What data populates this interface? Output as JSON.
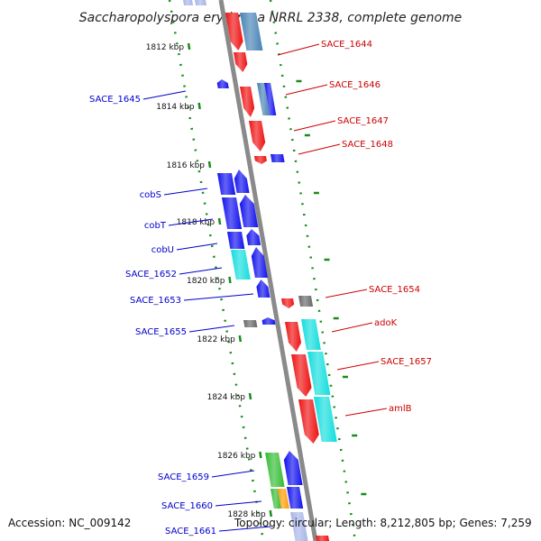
{
  "header": {
    "title": "Saccharopolyspora erythraea NRRL 2338, complete genome"
  },
  "footer": {
    "accession": "Accession: NC_009142",
    "topology": "Topology: circular; Length: 8,212,805 bp; Genes: 7,259"
  },
  "colors": {
    "backbone": "#8a8a8a",
    "tick": "#1a8c1a",
    "label_left": "#0000cc",
    "label_right": "#cc0000",
    "red": "#ee1111",
    "blue": "#1111ee",
    "cyan": "#11dddd",
    "steel": "#4682b4",
    "gray": "#666666",
    "green": "#33bb33",
    "orange": "#ff9900"
  },
  "ticks": [
    {
      "label": "1812 kbp"
    },
    {
      "label": "1814 kbp"
    },
    {
      "label": "1816 kbp"
    },
    {
      "label": "1818 kbp"
    },
    {
      "label": "1820 kbp"
    },
    {
      "label": "1822 kbp"
    },
    {
      "label": "1824 kbp"
    },
    {
      "label": "1826 kbp"
    },
    {
      "label": "1828 kbp"
    }
  ],
  "labels_left": [
    {
      "text": "SACE_1645"
    },
    {
      "text": "cobS"
    },
    {
      "text": "cobT"
    },
    {
      "text": "cobU"
    },
    {
      "text": "SACE_1652"
    },
    {
      "text": "SACE_1653"
    },
    {
      "text": "SACE_1655"
    },
    {
      "text": "SACE_1659"
    },
    {
      "text": "SACE_1660"
    },
    {
      "text": "SACE_1661"
    }
  ],
  "labels_right": [
    {
      "text": "SACE_1644"
    },
    {
      "text": "SACE_1646"
    },
    {
      "text": "SACE_1647"
    },
    {
      "text": "SACE_1648"
    },
    {
      "text": "SACE_1654"
    },
    {
      "text": "adoK"
    },
    {
      "text": "SACE_1657"
    },
    {
      "text": "amlB"
    }
  ]
}
